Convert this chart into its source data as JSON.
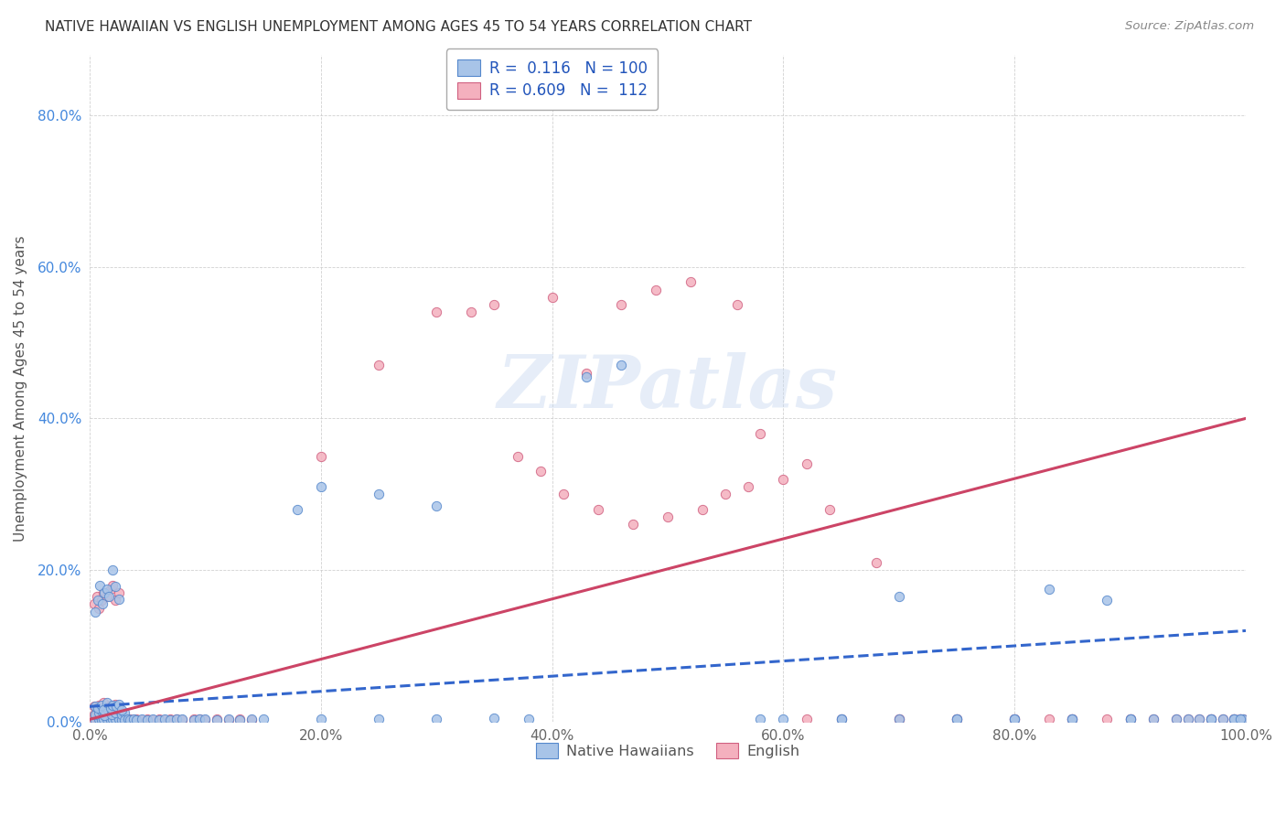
{
  "title": "NATIVE HAWAIIAN VS ENGLISH UNEMPLOYMENT AMONG AGES 45 TO 54 YEARS CORRELATION CHART",
  "source": "Source: ZipAtlas.com",
  "ylabel": "Unemployment Among Ages 45 to 54 years",
  "xlim": [
    0,
    1.0
  ],
  "ylim": [
    0,
    0.88
  ],
  "blue_color": "#a8c4e8",
  "pink_color": "#f4b0be",
  "blue_edge_color": "#5588cc",
  "pink_edge_color": "#d06080",
  "blue_line_color": "#3366cc",
  "pink_line_color": "#cc4466",
  "legend_color": "#2255bb",
  "blue_R": "0.116",
  "blue_N": "100",
  "pink_R": "0.609",
  "pink_N": "112",
  "watermark": "ZIPatlas",
  "blue_scatter_x": [
    0.005,
    0.008,
    0.01,
    0.012,
    0.015,
    0.018,
    0.02,
    0.022,
    0.025,
    0.028,
    0.005,
    0.008,
    0.01,
    0.013,
    0.016,
    0.019,
    0.022,
    0.025,
    0.028,
    0.03,
    0.005,
    0.007,
    0.01,
    0.012,
    0.015,
    0.018,
    0.02,
    0.023,
    0.025,
    0.028,
    0.03,
    0.033,
    0.035,
    0.038,
    0.04,
    0.045,
    0.05,
    0.055,
    0.06,
    0.065,
    0.07,
    0.075,
    0.08,
    0.09,
    0.095,
    0.1,
    0.11,
    0.12,
    0.13,
    0.14,
    0.005,
    0.007,
    0.009,
    0.011,
    0.013,
    0.015,
    0.017,
    0.02,
    0.022,
    0.025,
    0.18,
    0.2,
    0.25,
    0.3,
    0.35,
    0.38,
    0.43,
    0.46,
    0.58,
    0.65,
    0.7,
    0.75,
    0.8,
    0.83,
    0.85,
    0.88,
    0.9,
    0.92,
    0.94,
    0.96,
    0.97,
    0.98,
    0.99,
    0.995,
    0.998,
    0.15,
    0.2,
    0.25,
    0.3,
    0.6,
    0.65,
    0.7,
    0.75,
    0.8,
    0.85,
    0.9,
    0.95,
    0.97,
    0.99,
    0.995
  ],
  "blue_scatter_y": [
    0.002,
    0.003,
    0.002,
    0.004,
    0.003,
    0.002,
    0.003,
    0.004,
    0.003,
    0.002,
    0.01,
    0.012,
    0.014,
    0.008,
    0.015,
    0.01,
    0.012,
    0.015,
    0.01,
    0.012,
    0.02,
    0.018,
    0.022,
    0.016,
    0.025,
    0.018,
    0.022,
    0.02,
    0.023,
    0.015,
    0.002,
    0.003,
    0.002,
    0.003,
    0.002,
    0.003,
    0.002,
    0.003,
    0.002,
    0.003,
    0.002,
    0.003,
    0.003,
    0.002,
    0.003,
    0.003,
    0.002,
    0.003,
    0.002,
    0.003,
    0.145,
    0.16,
    0.18,
    0.155,
    0.17,
    0.175,
    0.165,
    0.2,
    0.178,
    0.162,
    0.28,
    0.31,
    0.3,
    0.285,
    0.005,
    0.003,
    0.455,
    0.47,
    0.003,
    0.003,
    0.165,
    0.003,
    0.003,
    0.175,
    0.003,
    0.16,
    0.003,
    0.003,
    0.003,
    0.003,
    0.003,
    0.003,
    0.003,
    0.003,
    0.003,
    0.003,
    0.003,
    0.003,
    0.003,
    0.003,
    0.003,
    0.003,
    0.003,
    0.003,
    0.003,
    0.003,
    0.003,
    0.003,
    0.003,
    0.003
  ],
  "pink_scatter_x": [
    0.004,
    0.006,
    0.008,
    0.01,
    0.012,
    0.015,
    0.018,
    0.02,
    0.022,
    0.025,
    0.004,
    0.006,
    0.008,
    0.01,
    0.012,
    0.015,
    0.018,
    0.02,
    0.022,
    0.025,
    0.004,
    0.006,
    0.008,
    0.01,
    0.012,
    0.015,
    0.018,
    0.02,
    0.022,
    0.025,
    0.028,
    0.03,
    0.032,
    0.035,
    0.038,
    0.04,
    0.045,
    0.05,
    0.055,
    0.06,
    0.065,
    0.07,
    0.075,
    0.08,
    0.09,
    0.095,
    0.1,
    0.11,
    0.12,
    0.13,
    0.004,
    0.006,
    0.008,
    0.01,
    0.012,
    0.015,
    0.018,
    0.02,
    0.022,
    0.025,
    0.14,
    0.2,
    0.25,
    0.3,
    0.33,
    0.35,
    0.4,
    0.43,
    0.46,
    0.49,
    0.52,
    0.56,
    0.58,
    0.62,
    0.64,
    0.68,
    0.7,
    0.75,
    0.8,
    0.83,
    0.85,
    0.88,
    0.9,
    0.92,
    0.94,
    0.96,
    0.97,
    0.98,
    0.99,
    0.995,
    0.37,
    0.39,
    0.41,
    0.44,
    0.47,
    0.5,
    0.53,
    0.55,
    0.57,
    0.6,
    0.62,
    0.65,
    0.7,
    0.75,
    0.8,
    0.85,
    0.9,
    0.95,
    0.97,
    0.99,
    0.995,
    0.998
  ],
  "pink_scatter_y": [
    0.002,
    0.003,
    0.002,
    0.003,
    0.002,
    0.003,
    0.002,
    0.003,
    0.002,
    0.003,
    0.01,
    0.012,
    0.013,
    0.011,
    0.014,
    0.012,
    0.013,
    0.015,
    0.011,
    0.014,
    0.02,
    0.018,
    0.022,
    0.016,
    0.025,
    0.018,
    0.022,
    0.02,
    0.023,
    0.015,
    0.002,
    0.003,
    0.002,
    0.003,
    0.002,
    0.003,
    0.002,
    0.003,
    0.002,
    0.003,
    0.002,
    0.003,
    0.003,
    0.002,
    0.003,
    0.003,
    0.002,
    0.003,
    0.002,
    0.003,
    0.155,
    0.165,
    0.15,
    0.16,
    0.17,
    0.165,
    0.175,
    0.18,
    0.16,
    0.17,
    0.002,
    0.35,
    0.47,
    0.54,
    0.54,
    0.55,
    0.56,
    0.46,
    0.55,
    0.57,
    0.58,
    0.55,
    0.38,
    0.34,
    0.28,
    0.21,
    0.003,
    0.003,
    0.003,
    0.003,
    0.003,
    0.003,
    0.003,
    0.003,
    0.003,
    0.003,
    0.003,
    0.003,
    0.003,
    0.003,
    0.35,
    0.33,
    0.3,
    0.28,
    0.26,
    0.27,
    0.28,
    0.3,
    0.31,
    0.32,
    0.003,
    0.003,
    0.003,
    0.003,
    0.003,
    0.003,
    0.003,
    0.003,
    0.003,
    0.003,
    0.003,
    0.003
  ]
}
